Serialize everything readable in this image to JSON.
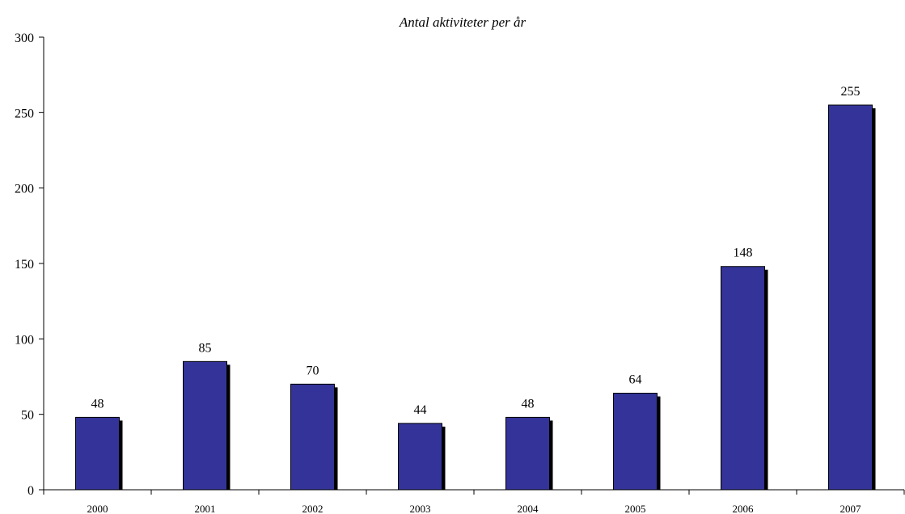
{
  "chart_data": {
    "type": "bar",
    "title": "Antal aktiviteter per år",
    "xlabel": "",
    "ylabel": "",
    "categories": [
      "2000",
      "2001",
      "2002",
      "2003",
      "2004",
      "2005",
      "2006",
      "2007"
    ],
    "series": [
      {
        "values": [
          48,
          85,
          70,
          44,
          48,
          64,
          148,
          255
        ]
      }
    ],
    "ylim": [
      0,
      300
    ],
    "yticks": [
      0,
      50,
      100,
      150,
      200,
      250,
      300
    ],
    "grid": false,
    "legend": "none",
    "data_labels": true,
    "colors": {
      "bar": "#333399",
      "bar_shadow": "#000000",
      "axis": "#000000"
    }
  }
}
